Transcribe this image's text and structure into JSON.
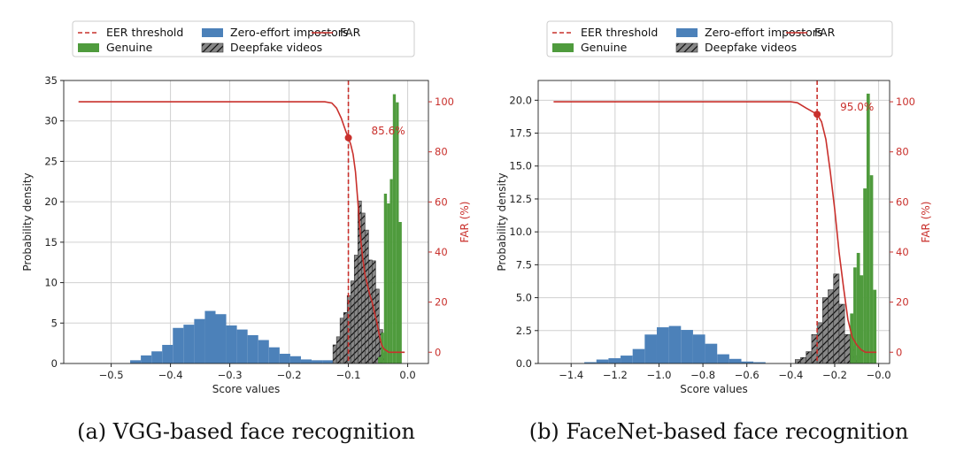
{
  "chart_data": [
    {
      "type": "histogram",
      "caption": "(a) VGG-based face recognition",
      "xlabel": "Score values",
      "ylabel": "Probability density",
      "y2label": "FAR (%)",
      "xlim": [
        -0.58,
        0.035
      ],
      "ylim": [
        0,
        35
      ],
      "y2lim": [
        -4.5,
        108.5
      ],
      "xticks": [
        -0.5,
        -0.4,
        -0.3,
        -0.2,
        -0.1,
        0.0
      ],
      "xtick_labels": [
        "−0.5",
        "−0.4",
        "−0.3",
        "−0.2",
        "−0.1",
        "0.0"
      ],
      "yticks": [
        0,
        5,
        10,
        15,
        20,
        25,
        30,
        35
      ],
      "ytick_labels": [
        "0",
        "5",
        "10",
        "15",
        "20",
        "25",
        "30",
        "35"
      ],
      "y2ticks": [
        0,
        20,
        40,
        60,
        80,
        100
      ],
      "y2tick_labels": [
        "0",
        "20",
        "40",
        "60",
        "80",
        "100"
      ],
      "legend": {
        "position": "top",
        "entries": {
          "eer": "EER threshold",
          "genuine": "Genuine",
          "impostor": "Zero-effort impostors",
          "deepfake": "Deepfake videos",
          "far": "FAR"
        }
      },
      "eer_threshold": -0.1,
      "eer_point": {
        "x": -0.1,
        "far": 85.6,
        "label": "85.6%"
      },
      "series": [
        {
          "name": "Zero-effort impostors",
          "color": "#4c81b9",
          "bins": [
            {
              "x0": -0.468,
              "x1": -0.45,
              "y": 0.4
            },
            {
              "x0": -0.45,
              "x1": -0.432,
              "y": 1.0
            },
            {
              "x0": -0.432,
              "x1": -0.414,
              "y": 1.5
            },
            {
              "x0": -0.414,
              "x1": -0.396,
              "y": 2.3
            },
            {
              "x0": -0.396,
              "x1": -0.378,
              "y": 4.4
            },
            {
              "x0": -0.378,
              "x1": -0.36,
              "y": 4.8
            },
            {
              "x0": -0.36,
              "x1": -0.342,
              "y": 5.5
            },
            {
              "x0": -0.342,
              "x1": -0.324,
              "y": 6.5
            },
            {
              "x0": -0.324,
              "x1": -0.306,
              "y": 6.1
            },
            {
              "x0": -0.306,
              "x1": -0.288,
              "y": 4.7
            },
            {
              "x0": -0.288,
              "x1": -0.27,
              "y": 4.2
            },
            {
              "x0": -0.27,
              "x1": -0.252,
              "y": 3.5
            },
            {
              "x0": -0.252,
              "x1": -0.234,
              "y": 2.9
            },
            {
              "x0": -0.234,
              "x1": -0.216,
              "y": 2.0
            },
            {
              "x0": -0.216,
              "x1": -0.198,
              "y": 1.2
            },
            {
              "x0": -0.198,
              "x1": -0.18,
              "y": 0.9
            },
            {
              "x0": -0.18,
              "x1": -0.162,
              "y": 0.5
            },
            {
              "x0": -0.162,
              "x1": -0.144,
              "y": 0.4
            },
            {
              "x0": -0.144,
              "x1": -0.126,
              "y": 0.4
            }
          ]
        },
        {
          "name": "Deepfake videos",
          "color": "#878787",
          "hatch": true,
          "bins": [
            {
              "x0": -0.126,
              "x1": -0.12,
              "y": 2.3
            },
            {
              "x0": -0.12,
              "x1": -0.114,
              "y": 3.3
            },
            {
              "x0": -0.114,
              "x1": -0.108,
              "y": 5.6
            },
            {
              "x0": -0.108,
              "x1": -0.102,
              "y": 6.3
            },
            {
              "x0": -0.102,
              "x1": -0.096,
              "y": 8.4
            },
            {
              "x0": -0.096,
              "x1": -0.09,
              "y": 10.2
            },
            {
              "x0": -0.09,
              "x1": -0.084,
              "y": 13.4
            },
            {
              "x0": -0.084,
              "x1": -0.078,
              "y": 20.1
            },
            {
              "x0": -0.078,
              "x1": -0.072,
              "y": 18.6
            },
            {
              "x0": -0.072,
              "x1": -0.066,
              "y": 16.5
            },
            {
              "x0": -0.066,
              "x1": -0.06,
              "y": 12.8
            },
            {
              "x0": -0.06,
              "x1": -0.054,
              "y": 12.7
            },
            {
              "x0": -0.054,
              "x1": -0.048,
              "y": 9.2
            },
            {
              "x0": -0.048,
              "x1": -0.042,
              "y": 4.2
            },
            {
              "x0": -0.042,
              "x1": -0.036,
              "y": 1.3
            }
          ]
        },
        {
          "name": "Genuine",
          "color": "#4f9b3d",
          "bins": [
            {
              "x0": -0.05,
              "x1": -0.045,
              "y": 0.8
            },
            {
              "x0": -0.045,
              "x1": -0.04,
              "y": 3.8
            },
            {
              "x0": -0.04,
              "x1": -0.035,
              "y": 21.0
            },
            {
              "x0": -0.035,
              "x1": -0.03,
              "y": 19.8
            },
            {
              "x0": -0.03,
              "x1": -0.025,
              "y": 22.8
            },
            {
              "x0": -0.025,
              "x1": -0.02,
              "y": 33.3
            },
            {
              "x0": -0.02,
              "x1": -0.015,
              "y": 32.3
            },
            {
              "x0": -0.015,
              "x1": -0.01,
              "y": 17.5
            }
          ]
        }
      ],
      "far_curve": [
        [
          -0.555,
          100
        ],
        [
          -0.14,
          100
        ],
        [
          -0.128,
          99.5
        ],
        [
          -0.12,
          97.5
        ],
        [
          -0.112,
          93.5
        ],
        [
          -0.104,
          88
        ],
        [
          -0.1,
          85.6
        ],
        [
          -0.096,
          83
        ],
        [
          -0.092,
          79
        ],
        [
          -0.088,
          72
        ],
        [
          -0.084,
          60
        ],
        [
          -0.08,
          47
        ],
        [
          -0.076,
          38
        ],
        [
          -0.072,
          31
        ],
        [
          -0.068,
          27
        ],
        [
          -0.064,
          23
        ],
        [
          -0.06,
          20
        ],
        [
          -0.056,
          16
        ],
        [
          -0.052,
          12
        ],
        [
          -0.048,
          7
        ],
        [
          -0.044,
          3
        ],
        [
          -0.04,
          1.3
        ],
        [
          -0.036,
          0.7
        ],
        [
          -0.032,
          0
        ],
        [
          -0.02,
          0
        ],
        [
          -0.005,
          0
        ]
      ]
    },
    {
      "type": "histogram",
      "caption": "(b) FaceNet-based face recognition",
      "xlabel": "Score values",
      "ylabel": "Probability density",
      "y2label": "FAR (%)",
      "xlim": [
        -1.55,
        0.05
      ],
      "ylim": [
        0,
        21.5
      ],
      "y2lim": [
        -4.5,
        108.5
      ],
      "xticks": [
        -1.4,
        -1.2,
        -1.0,
        -0.8,
        -0.6,
        -0.4,
        -0.2,
        0.0
      ],
      "xtick_labels": [
        "−1.4",
        "−1.2",
        "−1.0",
        "−0.8",
        "−0.6",
        "−0.4",
        "−0.2",
        "−0.0"
      ],
      "yticks": [
        0,
        2.5,
        5,
        7.5,
        10,
        12.5,
        15,
        17.5,
        20
      ],
      "ytick_labels": [
        "0.0",
        "2.5",
        "5.0",
        "7.5",
        "10.0",
        "12.5",
        "15.0",
        "17.5",
        "20.0"
      ],
      "y2ticks": [
        0,
        20,
        40,
        60,
        80,
        100
      ],
      "y2tick_labels": [
        "0",
        "20",
        "40",
        "60",
        "80",
        "100"
      ],
      "legend": {
        "position": "top",
        "entries": {
          "eer": "EER threshold",
          "genuine": "Genuine",
          "impostor": "Zero-effort impostors",
          "deepfake": "Deepfake videos",
          "far": "FAR"
        }
      },
      "eer_threshold": -0.28,
      "eer_point": {
        "x": -0.28,
        "far": 95.0,
        "label": "95.0%"
      },
      "series": [
        {
          "name": "Zero-effort impostors",
          "color": "#4c81b9",
          "bins": [
            {
              "x0": -1.34,
              "x1": -1.285,
              "y": 0.1
            },
            {
              "x0": -1.285,
              "x1": -1.23,
              "y": 0.3
            },
            {
              "x0": -1.23,
              "x1": -1.175,
              "y": 0.4
            },
            {
              "x0": -1.175,
              "x1": -1.12,
              "y": 0.6
            },
            {
              "x0": -1.12,
              "x1": -1.065,
              "y": 1.1
            },
            {
              "x0": -1.065,
              "x1": -1.01,
              "y": 2.2
            },
            {
              "x0": -1.01,
              "x1": -0.955,
              "y": 2.75
            },
            {
              "x0": -0.955,
              "x1": -0.9,
              "y": 2.85
            },
            {
              "x0": -0.9,
              "x1": -0.845,
              "y": 2.55
            },
            {
              "x0": -0.845,
              "x1": -0.79,
              "y": 2.2
            },
            {
              "x0": -0.79,
              "x1": -0.735,
              "y": 1.5
            },
            {
              "x0": -0.735,
              "x1": -0.68,
              "y": 0.7
            },
            {
              "x0": -0.68,
              "x1": -0.625,
              "y": 0.35
            },
            {
              "x0": -0.625,
              "x1": -0.57,
              "y": 0.15
            },
            {
              "x0": -0.57,
              "x1": -0.515,
              "y": 0.1
            }
          ]
        },
        {
          "name": "Deepfake videos",
          "color": "#878787",
          "hatch": true,
          "bins": [
            {
              "x0": -0.38,
              "x1": -0.355,
              "y": 0.3
            },
            {
              "x0": -0.355,
              "x1": -0.33,
              "y": 0.45
            },
            {
              "x0": -0.33,
              "x1": -0.305,
              "y": 0.9
            },
            {
              "x0": -0.305,
              "x1": -0.28,
              "y": 2.2
            },
            {
              "x0": -0.28,
              "x1": -0.255,
              "y": 3.1
            },
            {
              "x0": -0.255,
              "x1": -0.23,
              "y": 5.0
            },
            {
              "x0": -0.23,
              "x1": -0.205,
              "y": 5.6
            },
            {
              "x0": -0.205,
              "x1": -0.18,
              "y": 6.8
            },
            {
              "x0": -0.18,
              "x1": -0.155,
              "y": 4.5
            },
            {
              "x0": -0.155,
              "x1": -0.13,
              "y": 2.2
            },
            {
              "x0": -0.13,
              "x1": -0.105,
              "y": 1.3
            },
            {
              "x0": -0.105,
              "x1": -0.08,
              "y": 0.6
            }
          ]
        },
        {
          "name": "Genuine",
          "color": "#4f9b3d",
          "bins": [
            {
              "x0": -0.13,
              "x1": -0.115,
              "y": 3.8
            },
            {
              "x0": -0.115,
              "x1": -0.1,
              "y": 7.3
            },
            {
              "x0": -0.1,
              "x1": -0.085,
              "y": 8.4
            },
            {
              "x0": -0.085,
              "x1": -0.07,
              "y": 6.7
            },
            {
              "x0": -0.07,
              "x1": -0.055,
              "y": 13.3
            },
            {
              "x0": -0.055,
              "x1": -0.04,
              "y": 20.5
            },
            {
              "x0": -0.04,
              "x1": -0.025,
              "y": 14.3
            },
            {
              "x0": -0.025,
              "x1": -0.01,
              "y": 5.6
            }
          ]
        }
      ],
      "far_curve": [
        [
          -1.48,
          100
        ],
        [
          -0.4,
          100
        ],
        [
          -0.37,
          99.6
        ],
        [
          -0.33,
          97.5
        ],
        [
          -0.3,
          96
        ],
        [
          -0.28,
          95
        ],
        [
          -0.26,
          92
        ],
        [
          -0.24,
          85
        ],
        [
          -0.22,
          72
        ],
        [
          -0.2,
          57
        ],
        [
          -0.18,
          40
        ],
        [
          -0.16,
          26
        ],
        [
          -0.14,
          13
        ],
        [
          -0.12,
          6
        ],
        [
          -0.1,
          3
        ],
        [
          -0.08,
          1
        ],
        [
          -0.06,
          0
        ],
        [
          -0.01,
          0
        ]
      ]
    }
  ]
}
